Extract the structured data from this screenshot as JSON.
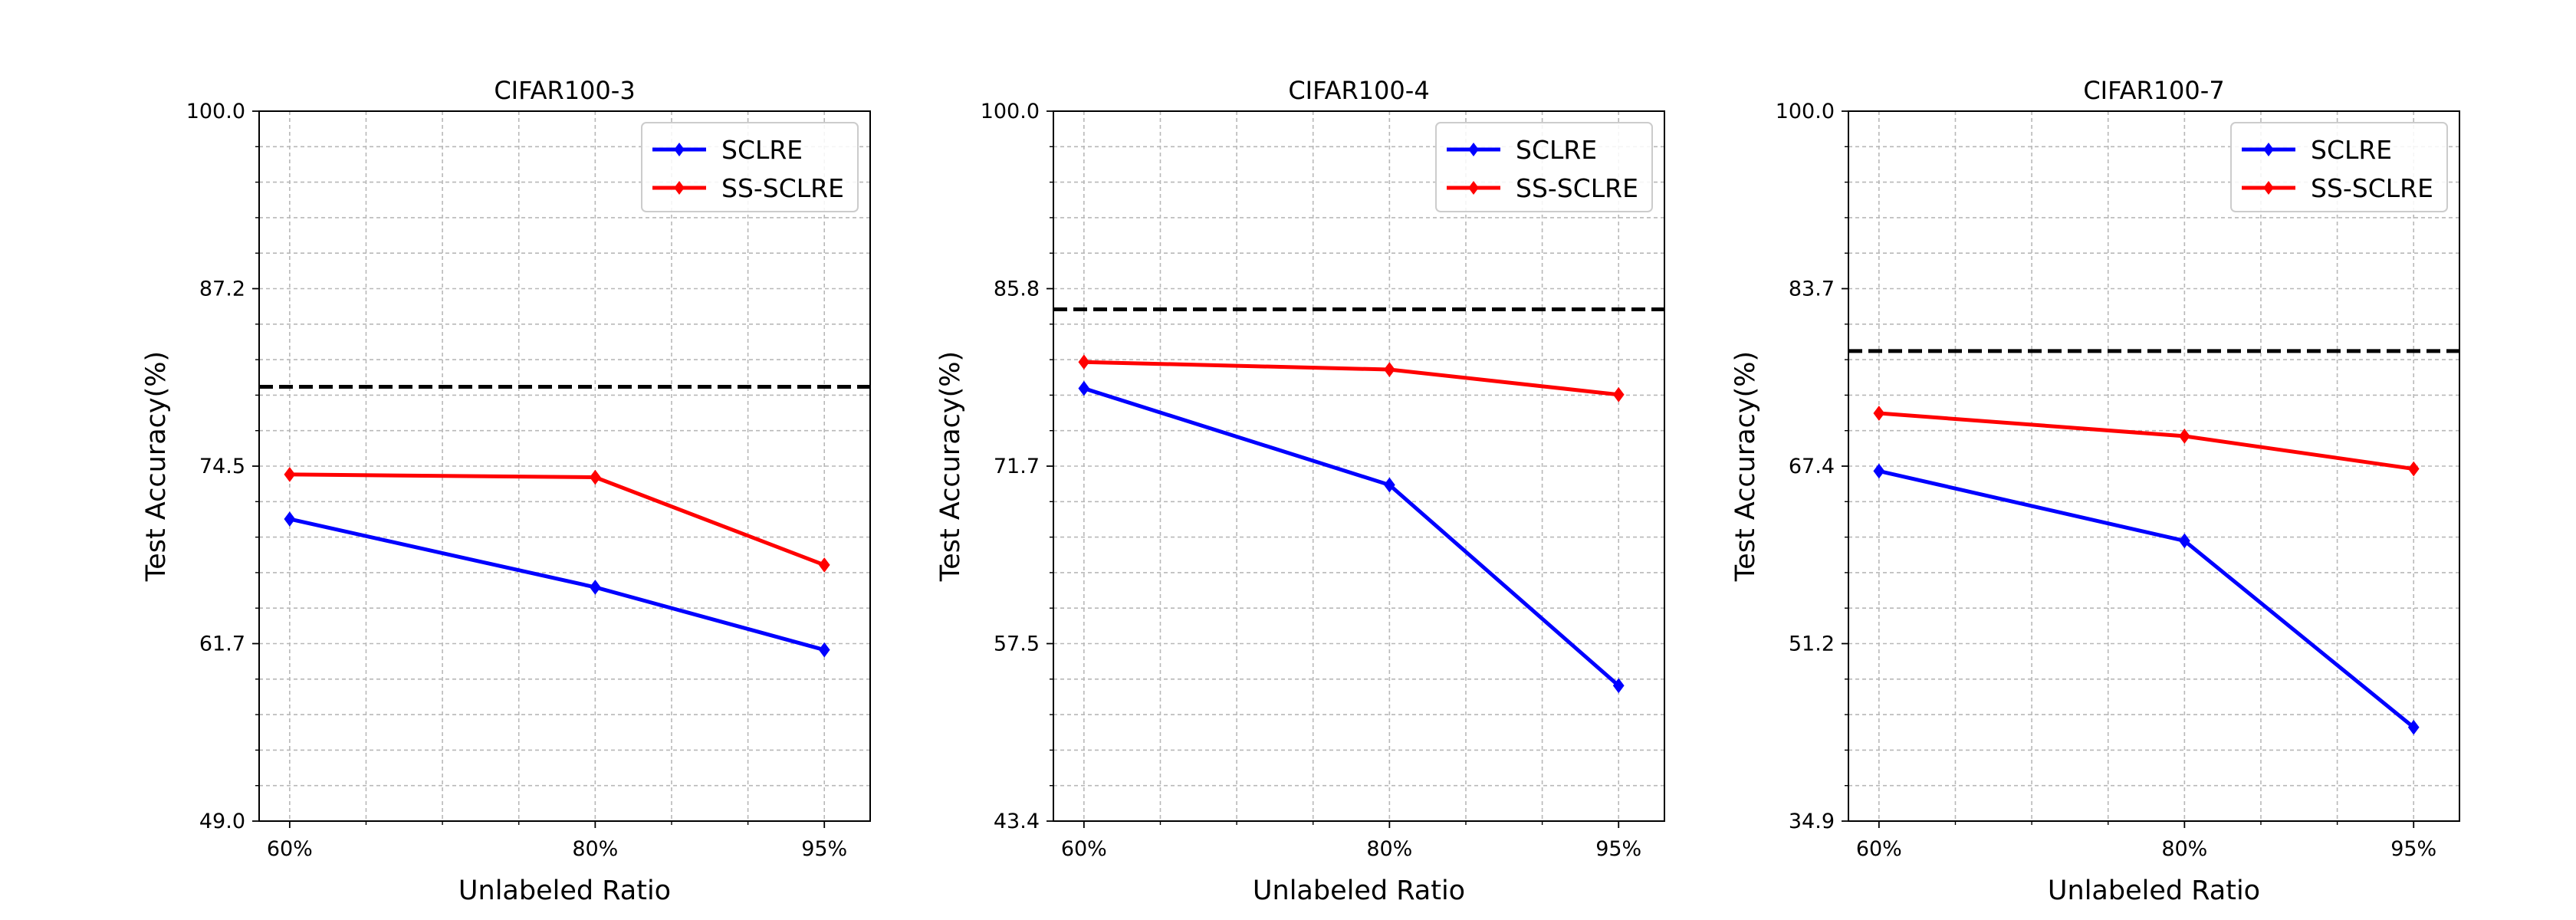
{
  "chart_data": [
    {
      "type": "line",
      "title": "CIFAR100-3",
      "xlabel": "Unlabeled Ratio",
      "ylabel": "Test Accuracy(%)",
      "x": [
        60,
        80,
        95
      ],
      "xticks": [
        {
          "value": 60,
          "label": "60%"
        },
        {
          "value": 80,
          "label": "80%"
        },
        {
          "value": 95,
          "label": "95%"
        }
      ],
      "xlim": [
        58,
        98
      ],
      "ylim": [
        49.0,
        100.0
      ],
      "yticks": [
        "49.0",
        "61.7",
        "74.5",
        "87.2",
        "100.0"
      ],
      "grid": true,
      "legend": "top-right",
      "baseline": 80.2,
      "series": [
        {
          "name": "SCLRE",
          "color": "#0000ff",
          "values": [
            70.7,
            65.8,
            61.3
          ]
        },
        {
          "name": "SS-SCLRE",
          "color": "#ff0000",
          "values": [
            73.9,
            73.7,
            67.4
          ]
        }
      ]
    },
    {
      "type": "line",
      "title": "CIFAR100-4",
      "xlabel": "Unlabeled Ratio",
      "ylabel": "Test Accuracy(%)",
      "x": [
        60,
        80,
        95
      ],
      "xticks": [
        {
          "value": 60,
          "label": "60%"
        },
        {
          "value": 80,
          "label": "80%"
        },
        {
          "value": 95,
          "label": "95%"
        }
      ],
      "xlim": [
        58,
        98
      ],
      "ylim": [
        43.4,
        100.0
      ],
      "yticks": [
        "43.4",
        "57.5",
        "71.7",
        "85.8",
        "100.0"
      ],
      "grid": true,
      "legend": "top-right",
      "baseline": 84.2,
      "series": [
        {
          "name": "SCLRE",
          "color": "#0000ff",
          "values": [
            77.9,
            70.2,
            54.2
          ]
        },
        {
          "name": "SS-SCLRE",
          "color": "#ff0000",
          "values": [
            80.0,
            79.4,
            77.4
          ]
        }
      ]
    },
    {
      "type": "line",
      "title": "CIFAR100-7",
      "xlabel": "Unlabeled Ratio",
      "ylabel": "Test Accuracy(%)",
      "x": [
        60,
        80,
        95
      ],
      "xticks": [
        {
          "value": 60,
          "label": "60%"
        },
        {
          "value": 80,
          "label": "80%"
        },
        {
          "value": 95,
          "label": "95%"
        }
      ],
      "xlim": [
        58,
        98
      ],
      "ylim": [
        34.9,
        100.0
      ],
      "yticks": [
        "34.9",
        "51.2",
        "67.4",
        "83.7",
        "100.0"
      ],
      "grid": true,
      "legend": "top-right",
      "baseline": 78.0,
      "series": [
        {
          "name": "SCLRE",
          "color": "#0000ff",
          "values": [
            67.0,
            60.6,
            43.5
          ]
        },
        {
          "name": "SS-SCLRE",
          "color": "#ff0000",
          "values": [
            72.3,
            70.2,
            67.2
          ]
        }
      ]
    }
  ]
}
